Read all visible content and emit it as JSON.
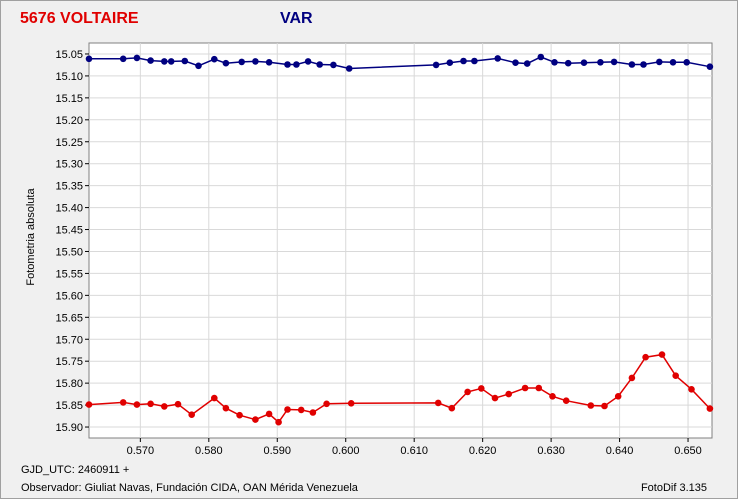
{
  "header": {
    "object_name": "5676 VOLTAIRE",
    "series_label": "VAR"
  },
  "footer": {
    "gjd": "GJD_UTC: 2460911 +",
    "observer": "Observador: Giuliat Navas, Fundación CIDA, OAN Mérida Venezuela",
    "version": "FotoDif 3.135"
  },
  "colors": {
    "top_series": "#000080",
    "bottom_series": "#e00000",
    "grid": "#d9d9d9",
    "plot_bg": "#ffffff"
  },
  "chart_data": {
    "type": "line",
    "ylabel": "Fotometria absoluta",
    "xlim": [
      0.5625,
      0.6535
    ],
    "ylim": [
      15.025,
      15.925
    ],
    "y_inverted": true,
    "grid": true,
    "x_ticks": [
      "0.570",
      "0.580",
      "0.590",
      "0.600",
      "0.610",
      "0.620",
      "0.630",
      "0.640",
      "0.650"
    ],
    "y_ticks": [
      "15.05",
      "15.10",
      "15.15",
      "15.20",
      "15.25",
      "15.30",
      "15.35",
      "15.40",
      "15.45",
      "15.50",
      "15.55",
      "15.60",
      "15.65",
      "15.70",
      "15.75",
      "15.80",
      "15.85",
      "15.90"
    ],
    "series": [
      {
        "color": "#000080",
        "x": [
          0.5625,
          0.5675,
          0.5695,
          0.5715,
          0.5735,
          0.5745,
          0.5765,
          0.5785,
          0.5808,
          0.5825,
          0.5848,
          0.5868,
          0.5888,
          0.5915,
          0.5928,
          0.5945,
          0.5962,
          0.5982,
          0.6005,
          0.6132,
          0.6152,
          0.6172,
          0.6188,
          0.6222,
          0.6248,
          0.6265,
          0.6285,
          0.6305,
          0.6325,
          0.6348,
          0.6372,
          0.6392,
          0.6418,
          0.6435,
          0.6458,
          0.6478,
          0.6498,
          0.6532
        ],
        "y": [
          15.061,
          15.061,
          15.059,
          15.065,
          15.067,
          15.067,
          15.066,
          15.077,
          15.062,
          15.071,
          15.068,
          15.067,
          15.069,
          15.074,
          15.074,
          15.067,
          15.074,
          15.075,
          15.083,
          15.075,
          15.07,
          15.066,
          15.066,
          15.06,
          15.07,
          15.072,
          15.057,
          15.069,
          15.071,
          15.07,
          15.069,
          15.068,
          15.074,
          15.074,
          15.068,
          15.069,
          15.069,
          15.079
        ]
      },
      {
        "color": "#e00000",
        "x": [
          0.5625,
          0.5675,
          0.5695,
          0.5715,
          0.5735,
          0.5755,
          0.5775,
          0.5808,
          0.5825,
          0.5845,
          0.5868,
          0.5888,
          0.5902,
          0.5915,
          0.5935,
          0.5952,
          0.5972,
          0.6008,
          0.6135,
          0.6155,
          0.6178,
          0.6198,
          0.6218,
          0.6238,
          0.6262,
          0.6282,
          0.6302,
          0.6322,
          0.6358,
          0.6378,
          0.6398,
          0.6418,
          0.6438,
          0.6462,
          0.6482,
          0.6505,
          0.6532
        ],
        "y": [
          15.849,
          15.844,
          15.849,
          15.847,
          15.853,
          15.848,
          15.872,
          15.834,
          15.857,
          15.873,
          15.883,
          15.87,
          15.889,
          15.86,
          15.861,
          15.867,
          15.847,
          15.846,
          15.845,
          15.857,
          15.82,
          15.812,
          15.834,
          15.825,
          15.811,
          15.811,
          15.83,
          15.84,
          15.851,
          15.852,
          15.83,
          15.788,
          15.741,
          15.735,
          15.783,
          15.814,
          15.858
        ]
      }
    ]
  }
}
